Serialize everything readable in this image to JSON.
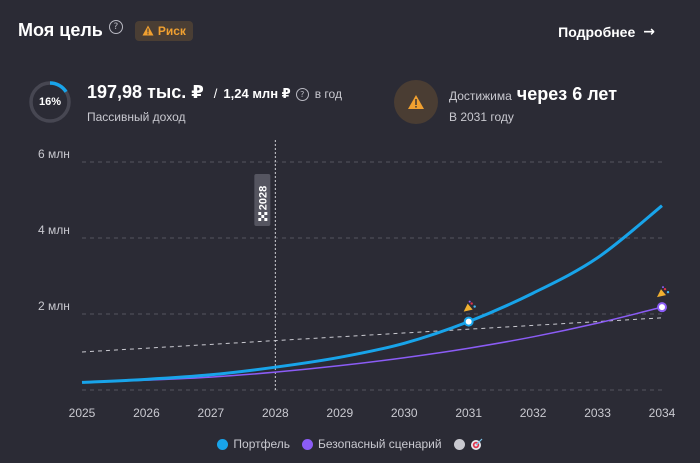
{
  "header": {
    "title": "Моя цель",
    "risk_badge": "Риск",
    "details_link": "Подробнее"
  },
  "income": {
    "percent_label": "16%",
    "percent_value": 0.16,
    "value": "197,98 тыс. ₽",
    "target": "1,24 млн ₽",
    "period": "в год",
    "label": "Пассивный доход"
  },
  "reach": {
    "label": "Достижима",
    "value": "через 6 лет",
    "year": "В 2031 году"
  },
  "colors": {
    "background": "#2b2b35",
    "portfolio": "#18a4ea",
    "safe": "#8b5cf6",
    "goal": "#c9c9d0",
    "warning": "#f0a030"
  },
  "chart_data": {
    "type": "line",
    "x": [
      2025,
      2026,
      2027,
      2028,
      2029,
      2030,
      2031,
      2032,
      2033,
      2034
    ],
    "x_tick_labels": [
      "2025",
      "2026",
      "2027",
      "2028",
      "2029",
      "2030",
      "2031",
      "2032",
      "2033",
      "2034"
    ],
    "y_ticks": [
      2000000,
      4000000,
      6000000
    ],
    "y_tick_labels": [
      "2 млн",
      "4 млн",
      "6 млн"
    ],
    "ylim": [
      0,
      6000000
    ],
    "grid": true,
    "marker_line": {
      "x": 2028,
      "label": "2028"
    },
    "series": [
      {
        "name": "Портфель",
        "color": "#18a4ea",
        "values": [
          200000,
          280000,
          400000,
          600000,
          860000,
          1230000,
          1800000,
          2550000,
          3480000,
          4850000
        ]
      },
      {
        "name": "Безопасный сценарий",
        "color": "#8b5cf6",
        "values": [
          200000,
          260000,
          340000,
          470000,
          640000,
          850000,
          1100000,
          1400000,
          1760000,
          2180000
        ]
      },
      {
        "name": "",
        "color": "#c9c9d0",
        "dashed": true,
        "values": [
          1000000,
          1100000,
          1200000,
          1300000,
          1400000,
          1500000,
          1600000,
          1700000,
          1800000,
          1900000
        ]
      }
    ],
    "markers": [
      {
        "series": 0,
        "x": 2031,
        "y": 1800000
      },
      {
        "series": 1,
        "x": 2034,
        "y": 2180000
      }
    ]
  },
  "legend": {
    "items": [
      {
        "label": "Портфель",
        "color": "#18a4ea"
      },
      {
        "label": "Безопасный сценарий",
        "color": "#8b5cf6"
      },
      {
        "label": "",
        "color": "#c9c9d0"
      }
    ]
  }
}
